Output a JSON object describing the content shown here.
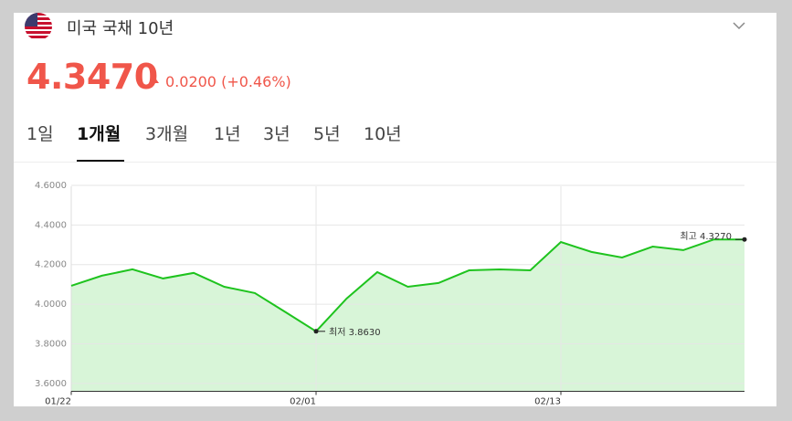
{
  "header": {
    "title": "미국 국채 10년",
    "price": "4.3470",
    "change": "0.0200",
    "change_percent": "(+0.46%)"
  },
  "tabs": [
    "1일",
    "1개월",
    "3개월",
    "1년",
    "3년",
    "5년",
    "10년"
  ],
  "active_tab": 1,
  "chart_data": {
    "type": "area",
    "categories": [
      "01/22",
      null,
      null,
      null,
      null,
      null,
      null,
      null,
      "02/01",
      null,
      null,
      null,
      null,
      null,
      null,
      null,
      "02/13",
      null,
      null,
      null,
      null,
      null,
      null
    ],
    "series": [
      {
        "color": "#1ec31e",
        "values": [
          4.093,
          4.144,
          4.176,
          4.13,
          4.158,
          4.088,
          4.056,
          3.96,
          3.863,
          4.029,
          4.162,
          4.088,
          4.107,
          4.171,
          4.176,
          4.171,
          4.314,
          4.264,
          4.236,
          4.291,
          4.273,
          4.327,
          4.327
        ]
      }
    ],
    "fill_color": "#d8f5d8",
    "ylim": [
      3.56,
      4.66
    ],
    "yticks": [
      {
        "value": 3.6,
        "label": "3.6000"
      },
      {
        "value": 3.8,
        "label": "3.8000"
      },
      {
        "value": 4.0,
        "label": "4.0000"
      },
      {
        "value": 4.2,
        "label": "4.2000"
      },
      {
        "value": 4.4,
        "label": "4.4000"
      },
      {
        "value": 4.6,
        "label": "4.6000"
      }
    ],
    "grid": true,
    "annotations": [
      {
        "text": "최저 3.8630"
      },
      {
        "text": "최고 4.3270"
      }
    ]
  }
}
